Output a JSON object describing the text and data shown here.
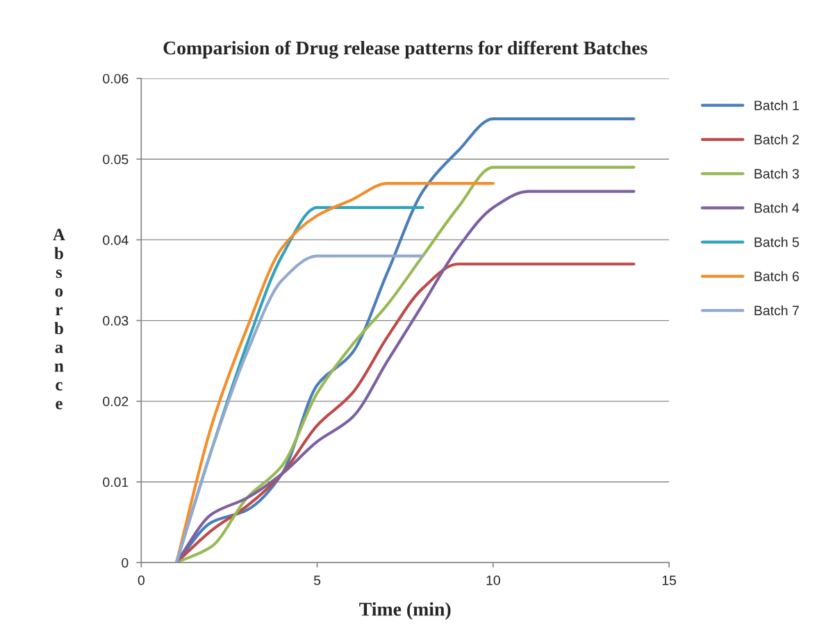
{
  "chart_data": {
    "type": "line",
    "title": "Comparision of Drug release patterns for different Batches",
    "xlabel": "Time (min)",
    "ylabel": "Absorbance",
    "xlim": [
      0,
      15
    ],
    "xticks": [
      0,
      5,
      10,
      15
    ],
    "ylim": [
      0,
      0.06
    ],
    "yticks": [
      0,
      0.01,
      0.02,
      0.03,
      0.04,
      0.05,
      0.06
    ],
    "grid": "y",
    "legend": "right",
    "marker": "none",
    "line_style": "solid",
    "series": [
      {
        "name": "Batch 1",
        "color": "#4a7ebb",
        "x": [
          1,
          2,
          3,
          4,
          5,
          6,
          7,
          8,
          9,
          10,
          11,
          12,
          13,
          14
        ],
        "values": [
          0,
          0.005,
          0.0065,
          0.011,
          0.022,
          0.026,
          0.036,
          0.046,
          0.051,
          0.055,
          0.055,
          0.055,
          0.055,
          0.055
        ]
      },
      {
        "name": "Batch 2",
        "color": "#be4b48",
        "x": [
          1,
          2,
          3,
          4,
          5,
          6,
          7,
          8,
          9,
          10,
          11,
          12,
          13,
          14
        ],
        "values": [
          0,
          0.004,
          0.007,
          0.011,
          0.017,
          0.021,
          0.028,
          0.034,
          0.037,
          0.037,
          0.037,
          0.037,
          0.037,
          0.037
        ]
      },
      {
        "name": "Batch 3",
        "color": "#98b954",
        "x": [
          1,
          2,
          3,
          4,
          5,
          6,
          7,
          8,
          9,
          10,
          11,
          12,
          13,
          14
        ],
        "values": [
          0,
          0.002,
          0.008,
          0.012,
          0.021,
          0.027,
          0.032,
          0.038,
          0.044,
          0.049,
          0.049,
          0.049,
          0.049,
          0.049
        ]
      },
      {
        "name": "Batch 4",
        "color": "#7d60a0",
        "x": [
          1,
          2,
          3,
          4,
          5,
          6,
          7,
          8,
          9,
          10,
          11,
          12,
          13,
          14
        ],
        "values": [
          0,
          0.006,
          0.008,
          0.011,
          0.015,
          0.018,
          0.025,
          0.032,
          0.039,
          0.044,
          0.046,
          0.046,
          0.046,
          0.046
        ]
      },
      {
        "name": "Batch 5",
        "color": "#31a2bc",
        "x": [
          1,
          2,
          3,
          4,
          5,
          6,
          7,
          8
        ],
        "values": [
          0,
          0.014,
          0.027,
          0.038,
          0.044,
          0.044,
          0.044,
          0.044
        ]
      },
      {
        "name": "Batch 6",
        "color": "#f28e2b",
        "x": [
          1,
          2,
          3,
          4,
          5,
          6,
          7,
          8,
          9,
          10
        ],
        "values": [
          0,
          0.017,
          0.029,
          0.039,
          0.043,
          0.045,
          0.047,
          0.047,
          0.047,
          0.047
        ]
      },
      {
        "name": "Batch 7",
        "color": "#93a9cf",
        "x": [
          1,
          2,
          3,
          4,
          5,
          6,
          7,
          8
        ],
        "values": [
          0,
          0.014,
          0.026,
          0.035,
          0.038,
          0.038,
          0.038,
          0.038
        ]
      }
    ]
  }
}
